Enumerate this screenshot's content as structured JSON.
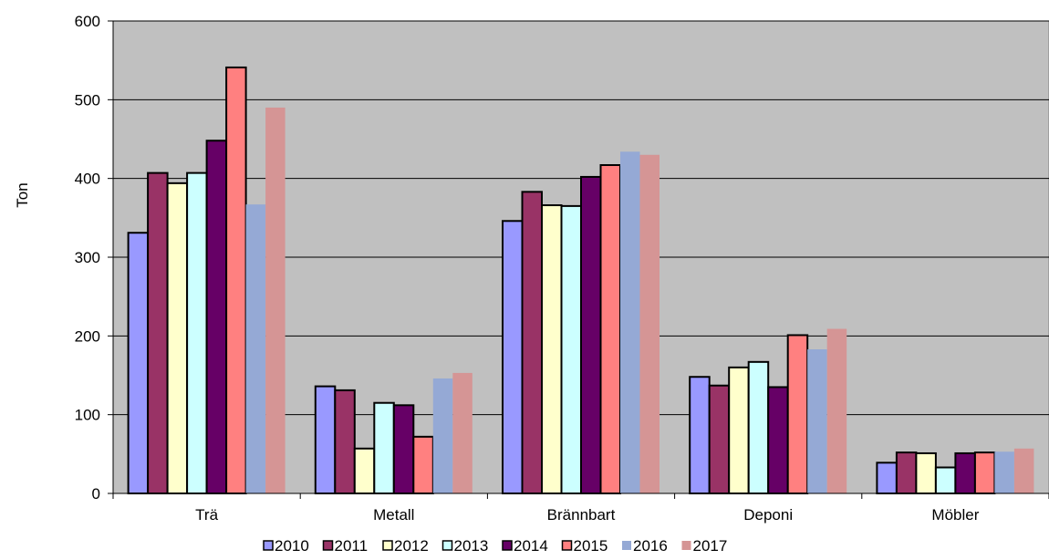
{
  "chart_data": {
    "type": "bar",
    "title": "",
    "xlabel": "",
    "ylabel": "Ton",
    "ylim": [
      0,
      600
    ],
    "yticks": [
      "0",
      "100",
      "200",
      "300",
      "400",
      "500",
      "600"
    ],
    "grid": true,
    "legend_position": "bottom",
    "plot_background": "#c0c0c0",
    "categories": [
      "Trä",
      "Metall",
      "Brännbart",
      "Deponi",
      "Möbler"
    ],
    "series": [
      {
        "name": "2010",
        "color": "#9999ff",
        "outlined": true,
        "values": [
          331,
          136,
          346,
          148,
          39
        ]
      },
      {
        "name": "2011",
        "color": "#993366",
        "outlined": true,
        "values": [
          407,
          131,
          383,
          137,
          52
        ]
      },
      {
        "name": "2012",
        "color": "#ffffcc",
        "outlined": true,
        "values": [
          394,
          57,
          366,
          160,
          51
        ]
      },
      {
        "name": "2013",
        "color": "#ccffff",
        "outlined": true,
        "values": [
          407,
          115,
          365,
          167,
          33
        ]
      },
      {
        "name": "2014",
        "color": "#660066",
        "outlined": true,
        "values": [
          448,
          112,
          402,
          135,
          51
        ]
      },
      {
        "name": "2015",
        "color": "#ff8080",
        "outlined": true,
        "values": [
          541,
          72,
          417,
          201,
          52
        ]
      },
      {
        "name": "2016",
        "color": "#95a9d5",
        "outlined": false,
        "values": [
          367,
          146,
          434,
          183,
          53
        ]
      },
      {
        "name": "2017",
        "color": "#d59595",
        "outlined": false,
        "values": [
          490,
          153,
          430,
          209,
          57
        ]
      }
    ]
  }
}
